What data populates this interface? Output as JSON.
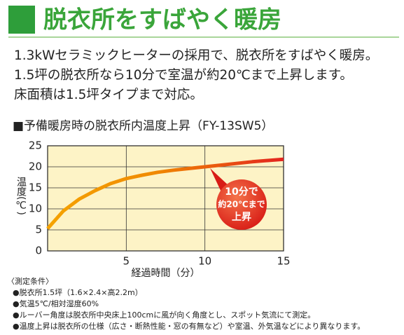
{
  "header": {
    "title": "脱衣所をすばやく暖房"
  },
  "paragraphs": [
    "1.3kWセラミックヒーターの採用で、脱衣所をすばやく暖房。",
    "1.5坪の脱衣所なら10分で室温が約20℃まで上昇します。",
    "床面積は1.5坪タイプまで対応。"
  ],
  "chart_data": {
    "type": "line",
    "title": "■予備暖房時の脱衣所内温度上昇（FY-13SW5）",
    "y_label": "温度(℃)",
    "x_label": "経過時間（分）",
    "x": [
      0,
      1,
      2,
      3,
      4,
      5,
      6,
      7,
      8,
      9,
      10,
      11,
      12,
      13,
      14,
      15
    ],
    "values": [
      5.3,
      9.5,
      12.3,
      14.3,
      16,
      17.2,
      18,
      18.7,
      19.2,
      19.6,
      20,
      20.4,
      20.8,
      21.2,
      21.5,
      21.8
    ],
    "xlim": [
      0,
      15
    ],
    "ylim": [
      0,
      25
    ],
    "xticks": [
      5,
      10,
      15
    ],
    "yticks": [
      0,
      5,
      10,
      15,
      20,
      25
    ],
    "grid": true,
    "colors": [
      "#f5a300",
      "#e3231f"
    ],
    "background": "#fdf3c6",
    "callout": [
      "10分で",
      "約20℃まで",
      "上昇"
    ]
  },
  "conditions": {
    "title": "〈測定条件〉",
    "items": [
      "●脱衣所1.5坪（1.6×2.4×高2.2m）",
      "●気温5℃/相対湿度60%",
      "●ルーバー角度は脱衣所中央床上100cmに風が向く角度とし、スポット気流にて測定。",
      "●温度上昇は脱衣所の仕様（広さ・断熱性能・窓の有無など）や室温、外気温などにより異なります。"
    ]
  }
}
